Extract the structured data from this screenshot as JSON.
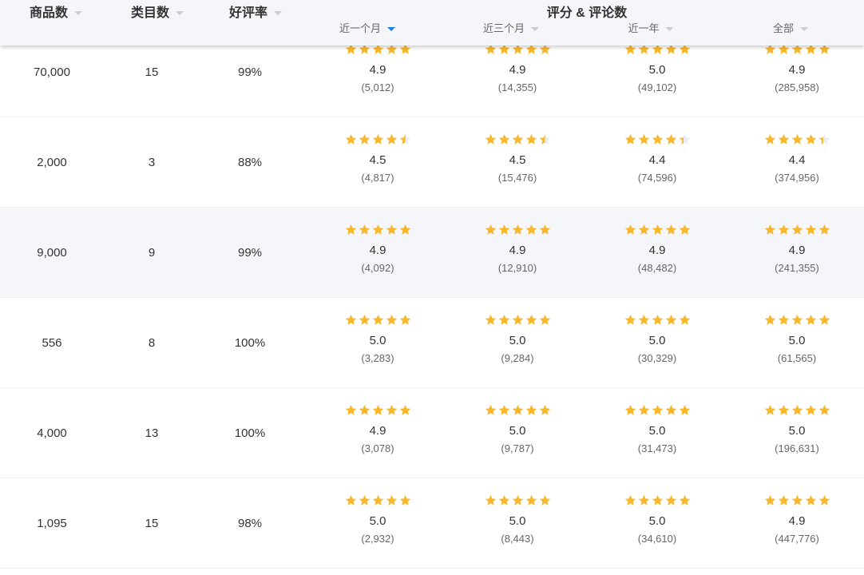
{
  "header": {
    "columns": [
      "商品数",
      "类目数",
      "好评率"
    ],
    "group_title": "评分 & 评论数",
    "periods": [
      "近一个月",
      "近三个月",
      "近一年",
      "全部"
    ],
    "active_period": 0
  },
  "colors": {
    "star": "#f8b72c",
    "star_empty": "#e8ebf0",
    "sort_active": "#1e7be0"
  },
  "rows": [
    {
      "items": "70,000",
      "categories": "15",
      "positive": "99%",
      "scores": [
        [
          "4.9",
          "(5,012)"
        ],
        [
          "4.9",
          "(14,355)"
        ],
        [
          "5.0",
          "(49,102)"
        ],
        [
          "4.9",
          "(285,958)"
        ]
      ]
    },
    {
      "items": "2,000",
      "categories": "3",
      "positive": "88%",
      "scores": [
        [
          "4.5",
          "(4,817)"
        ],
        [
          "4.5",
          "(15,476)"
        ],
        [
          "4.4",
          "(74,596)"
        ],
        [
          "4.4",
          "(374,956)"
        ]
      ]
    },
    {
      "items": "9,000",
      "categories": "9",
      "positive": "99%",
      "scores": [
        [
          "4.9",
          "(4,092)"
        ],
        [
          "4.9",
          "(12,910)"
        ],
        [
          "4.9",
          "(48,482)"
        ],
        [
          "4.9",
          "(241,355)"
        ]
      ]
    },
    {
      "items": "556",
      "categories": "8",
      "positive": "100%",
      "scores": [
        [
          "5.0",
          "(3,283)"
        ],
        [
          "5.0",
          "(9,284)"
        ],
        [
          "5.0",
          "(30,329)"
        ],
        [
          "5.0",
          "(61,565)"
        ]
      ]
    },
    {
      "items": "4,000",
      "categories": "13",
      "positive": "100%",
      "scores": [
        [
          "4.9",
          "(3,078)"
        ],
        [
          "5.0",
          "(9,787)"
        ],
        [
          "5.0",
          "(31,473)"
        ],
        [
          "5.0",
          "(196,631)"
        ]
      ]
    },
    {
      "items": "1,095",
      "categories": "15",
      "positive": "98%",
      "scores": [
        [
          "5.0",
          "(2,932)"
        ],
        [
          "5.0",
          "(8,443)"
        ],
        [
          "5.0",
          "(34,610)"
        ],
        [
          "4.9",
          "(447,776)"
        ]
      ]
    }
  ]
}
